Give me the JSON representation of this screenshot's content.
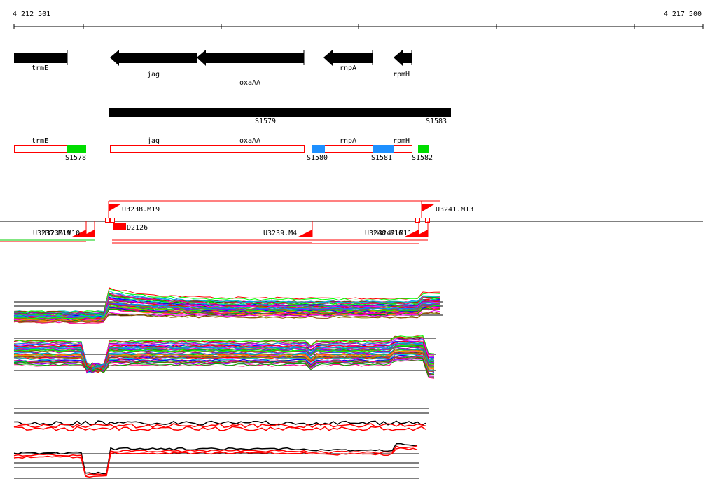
{
  "ruler": {
    "start_label": "4 212 501",
    "end_label": "4 217 500",
    "start_coord": 4212501,
    "end_coord": 4217500
  },
  "genes": [
    {
      "name": "trmE",
      "start": 4212501,
      "end": 4212886,
      "strand": "+"
    },
    {
      "name": "jag",
      "start": 4213196,
      "end": 4213831,
      "strand": "-"
    },
    {
      "name": "oxaAA",
      "start": 4213831,
      "end": 4214589,
      "strand": "-"
    },
    {
      "name": "rnpA",
      "start": 4214727,
      "end": 4215082,
      "strand": "-"
    },
    {
      "name": "rpmH",
      "start": 4215193,
      "end": 4215331,
      "strand": "-"
    }
  ],
  "operon": {
    "start": 4213183,
    "end": 4215661,
    "labels": [
      "S1579",
      "S1583"
    ]
  },
  "gene_boxes": [
    {
      "name": "trmE",
      "start": 4212501,
      "end": 4213018
    },
    {
      "name": "jag",
      "start": 4213196,
      "end": 4213831
    },
    {
      "name": "oxaAA",
      "start": 4213831,
      "end": 4214589
    },
    {
      "name": "rnpA",
      "start": 4214589,
      "end": 4215193
    },
    {
      "name": "rpmH",
      "start": 4215193,
      "end": 4215331
    }
  ],
  "features": [
    {
      "label": "S1578",
      "start": 4212886,
      "end": 4213018,
      "color": "#00dd00"
    },
    {
      "label": "S1580",
      "start": 4214563,
      "end": 4214652,
      "color": "#1e90ff"
    },
    {
      "label": "S1581",
      "start": 4215066,
      "end": 4215218,
      "color": "#1e90ff"
    },
    {
      "label": "S1582",
      "start": 4215381,
      "end": 4215458,
      "color": "#00dd00"
    }
  ],
  "upper_labels": [
    {
      "text": "U3238.M19"
    },
    {
      "text": "U3241.M13"
    }
  ],
  "lower_labels": [
    {
      "text": "U3237.M19"
    },
    {
      "text": "U3236.M10"
    },
    {
      "text": "D2126"
    },
    {
      "text": "U3239.M4"
    },
    {
      "text": "U3240.M16"
    },
    {
      "text": "U3242.M11"
    }
  ],
  "colors": {
    "gene": "#000000",
    "box": "#ff0000",
    "accent": "#ff0000"
  }
}
